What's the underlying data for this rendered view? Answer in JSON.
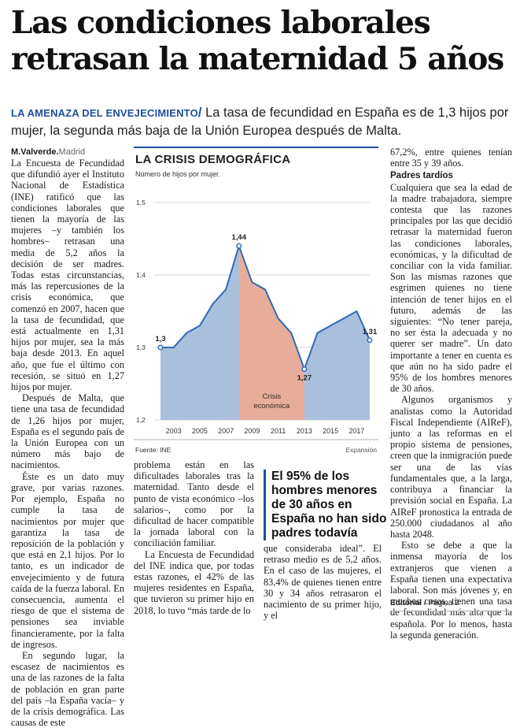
{
  "headline": {
    "line1": "Las condiciones laborales",
    "line2": "retrasan la maternidad 5 años"
  },
  "subheadline": {
    "kicker": "LA AMENAZA DEL ENVEJECIMIENTO",
    "slash": "/",
    "text": "La tasa de fecundidad en España es de 1,3 hijos por mujer, la segunda más baja de la Unión Europea después de Malta."
  },
  "byline": {
    "author": "M.Valverde.",
    "city": "Madrid"
  },
  "column1": [
    "La Encuesta de Fecundidad que difundió ayer el Instituto Nacional de Estadística (INE) ratificó que las condiciones laborales que tienen la mayoría de las mujeres –y también los hombres– retrasan una media de 5,2 años la decisión de ser madres. Todas estas circunstancias, más las repercusiones de la crisis económica, que comenzó en 2007, hacen que la tasa de fecundidad, que está actualmente en 1,31 hijos por mujer, sea la más baja desde 2013. En aquel año, que fue el último con recesión, se situó en 1,27 hijos por mujer.",
    "Después de Malta, que tiene una tasa de fecundidad de 1,26 hijos por mujer, España es el segundo país de la Unión Europea con un número más bajo de nacimientos.",
    "Éste es un dato muy grave, por varias razones. Por ejemplo, España no cumple la tasa de nacimientos por mujer que garantiza la tasa de reposición de la población y que está en 2,1 hijos. Por lo tanto, es un indicador de envejecimiento y de futura caída de la fuerza laboral. En consecuencia, aumenta el riesgo de que el sistema de pensiones sea inviable financieramente, por la falta de ingresos.",
    "En segundo lugar, la escasez de nacimientos es una de las razones de la falta de población en gran parte del país –la España vacía– y de la crisis demográfica. Las causas de este"
  ],
  "column2": [
    "problema están en las dificultades laborales tras la maternidad. Tanto desde el punto de vista económico –los salarios–, como por la dificultad de hacer compatible la jornada laboral con la conciliación familiar.",
    "La Encuesta de Fecundidad del INE indica que, por todas estas razones, el 42% de las mujeres residentes en España, que tuvieron su primer hijo en 2018, lo tuvo “más tarde de lo"
  ],
  "column3": [
    "que consideraba ideal”. El retraso medio es de 5,2 años. En el caso de las mujeres, el 83,4% de quienes tienen entre 30 y 34 años retrasaron el nacimiento de su primer hijo, y el"
  ],
  "pull_quote": "El 95% de los hombres menores de 30 años en España no han sido padres todavía",
  "column4": {
    "intro": "67,2%, entre quienes tenían entre 35 y 39 años.",
    "subhead": "Padres tardíos",
    "paragraphs": [
      "Cualquiera que sea la edad de la madre trabajadora, siempre contesta que las razones principales por las que decidió retrasar la maternidad fueron las condiciones laborales, económicas, y la dificultad de conciliar con la vida familiar. Son las mismas razones que esgrimen quienes no tiene intención de tener hijos en el futuro, además de las siguientes: “No tener pareja, no ser ésta la adecuada y no querer ser madre”. Un dato importante a tener en cuenta es que aún no ha sido padre el 95% de los hombres menores de 30 años.",
      "Algunos organismos y analistas como la Autoridad Fiscal Independiente (AIReF), junto a las reformas en el propio sistema de pensiones, creen que la inmigración puede ser una de las vías fundamentales que, a la larga, contribuya a financiar la previsión social en España. La AIReF pronostica la entrada de 250.000 ciudadanos al año hasta 2048.",
      "Esto se debe a que la inmensa mayoría de los extranjeros que vienen a España tienen una expectativa laboral. Son más jóvenes y, en muchos casos, tienen una tasa de fecundidad más alta que la española. Por lo menos, hasta la segunda generación."
    ]
  },
  "footer": {
    "section": "Editorial",
    "page": " / Página 2"
  },
  "chart_data": {
    "type": "area",
    "title": "LA CRISIS DEMOGRÁFICA",
    "ylabel": "Número de hijos por mujer.",
    "source": "Fuente: INE",
    "credit": "Expansión",
    "ylim": [
      1.2,
      1.5
    ],
    "yticks": [
      "1,5",
      "1,4",
      "1,3",
      "1,2"
    ],
    "yticks_values": [
      1.5,
      1.4,
      1.3,
      1.2
    ],
    "xticks": [
      "2003",
      "2005",
      "2007",
      "2009",
      "2011",
      "2013",
      "2015",
      "2017"
    ],
    "x": [
      2002,
      2003,
      2004,
      2005,
      2006,
      2007,
      2008,
      2009,
      2010,
      2011,
      2012,
      2013,
      2014,
      2015,
      2016,
      2017,
      2018
    ],
    "values": [
      1.3,
      1.3,
      1.32,
      1.33,
      1.36,
      1.38,
      1.44,
      1.39,
      1.38,
      1.34,
      1.32,
      1.27,
      1.32,
      1.33,
      1.34,
      1.35,
      1.31
    ],
    "highlight": {
      "from": 2008,
      "to": 2013,
      "label_line1": "Crisis",
      "label_line2": "económica",
      "color": "#e8ad9a"
    },
    "base_color": "#a9c0dd",
    "line_color": "#2e6ab5",
    "annotations": [
      {
        "x": 2002,
        "y": 1.3,
        "label": "1,3"
      },
      {
        "x": 2008,
        "y": 1.44,
        "label": "1,44"
      },
      {
        "x": 2013,
        "y": 1.27,
        "label": "1,27"
      },
      {
        "x": 2018,
        "y": 1.31,
        "label": "1,31"
      }
    ]
  }
}
